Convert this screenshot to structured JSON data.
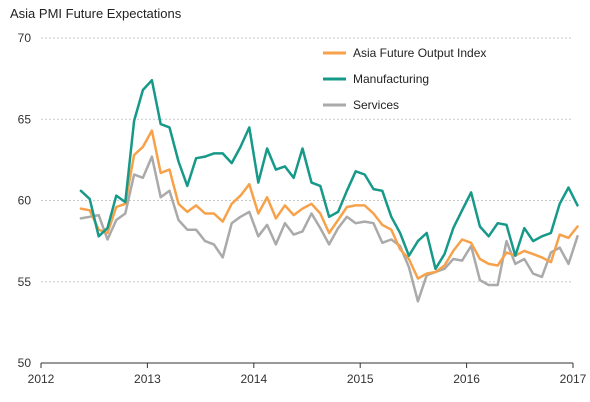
{
  "chart_data": {
    "type": "line",
    "title": "Asia PMI Future Expectations",
    "xlabel": "",
    "ylabel": "",
    "ylim": [
      50,
      70
    ],
    "yticks": [
      50,
      55,
      60,
      65,
      70
    ],
    "xticks": [
      "2012",
      "2013",
      "2014",
      "2015",
      "2016",
      "2017"
    ],
    "xlim": [
      2012.0,
      2017.0
    ],
    "grid": "horizontal dotted",
    "legend_position": "top-right",
    "x": [
      2012.375,
      2012.458,
      2012.542,
      2012.625,
      2012.708,
      2012.792,
      2012.875,
      2012.958,
      2013.042,
      2013.125,
      2013.208,
      2013.292,
      2013.375,
      2013.458,
      2013.542,
      2013.625,
      2013.708,
      2013.792,
      2013.875,
      2013.958,
      2014.042,
      2014.125,
      2014.208,
      2014.292,
      2014.375,
      2014.458,
      2014.542,
      2014.625,
      2014.708,
      2014.792,
      2014.875,
      2014.958,
      2015.042,
      2015.125,
      2015.208,
      2015.292,
      2015.375,
      2015.458,
      2015.542,
      2015.625,
      2015.708,
      2015.792,
      2015.875,
      2015.958,
      2016.042,
      2016.125,
      2016.208,
      2016.292,
      2016.375,
      2016.458,
      2016.542,
      2016.625,
      2016.708,
      2016.792,
      2016.875,
      2016.958,
      2017.042
    ],
    "series": [
      {
        "name": "Asia Future Output Index",
        "color": "#f7a24a",
        "values": [
          59.5,
          59.4,
          58.2,
          58.0,
          59.6,
          59.8,
          62.8,
          63.3,
          64.3,
          61.7,
          61.9,
          59.8,
          59.3,
          59.7,
          59.2,
          59.2,
          58.7,
          59.8,
          60.3,
          61.0,
          59.2,
          60.2,
          58.9,
          59.7,
          59.1,
          59.5,
          59.8,
          59.2,
          58.0,
          58.8,
          59.6,
          59.7,
          59.7,
          59.2,
          58.5,
          58.2,
          57.0,
          56.4,
          55.2,
          55.5,
          55.6,
          56.0,
          56.9,
          57.6,
          57.4,
          56.4,
          56.1,
          56.0,
          56.8,
          56.6,
          56.9,
          56.7,
          56.5,
          56.2,
          57.9,
          57.7,
          58.4
        ]
      },
      {
        "name": "Manufacturing",
        "color": "#17998a",
        "values": [
          60.6,
          60.1,
          57.8,
          58.3,
          60.3,
          59.9,
          64.9,
          66.8,
          67.4,
          64.7,
          64.5,
          62.4,
          60.9,
          62.6,
          62.7,
          62.9,
          62.9,
          62.3,
          63.3,
          64.5,
          61.1,
          63.2,
          61.9,
          62.1,
          61.4,
          63.2,
          61.1,
          60.9,
          59.0,
          59.3,
          60.6,
          61.8,
          61.6,
          60.7,
          60.6,
          59.0,
          58.0,
          56.6,
          57.5,
          58.0,
          55.8,
          56.7,
          58.3,
          59.4,
          60.5,
          58.4,
          57.8,
          58.6,
          58.5,
          56.6,
          58.3,
          57.5,
          57.8,
          58.0,
          59.8,
          60.8,
          59.7
        ]
      },
      {
        "name": "Services",
        "color": "#aaaaaa",
        "values": [
          58.9,
          59.0,
          59.1,
          57.6,
          58.8,
          59.2,
          61.6,
          61.4,
          62.7,
          60.2,
          60.6,
          58.8,
          58.2,
          58.2,
          57.5,
          57.3,
          56.5,
          58.6,
          59.0,
          59.3,
          57.8,
          58.5,
          57.3,
          58.6,
          57.9,
          58.1,
          59.2,
          58.3,
          57.3,
          58.3,
          59.0,
          58.6,
          58.7,
          58.6,
          57.4,
          57.6,
          57.2,
          55.9,
          53.8,
          55.4,
          55.6,
          55.8,
          56.4,
          56.3,
          57.2,
          55.1,
          54.8,
          54.8,
          57.5,
          56.1,
          56.4,
          55.5,
          55.3,
          56.8,
          57.1,
          56.1,
          57.8
        ]
      }
    ]
  }
}
